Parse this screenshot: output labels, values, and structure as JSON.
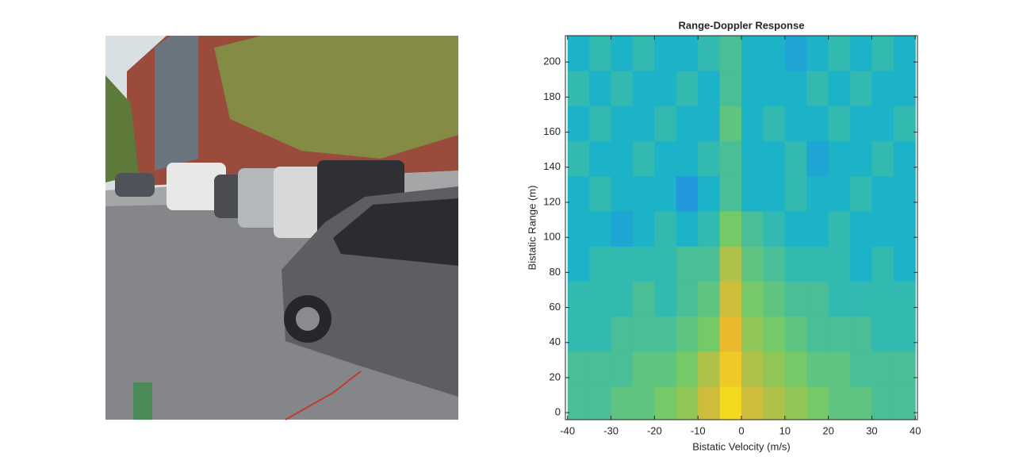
{
  "chart_data": {
    "type": "heatmap",
    "title": "Range-Doppler Response",
    "xlabel": "Bistatic Velocity (m/s)",
    "ylabel": "Bistatic Range (m)",
    "x": [
      -37.5,
      -32.5,
      -27.5,
      -22.5,
      -17.5,
      -12.5,
      -7.5,
      -2.5,
      2.5,
      7.5,
      12.5,
      17.5,
      22.5,
      27.5,
      32.5,
      37.5
    ],
    "y": [
      5,
      25,
      45,
      65,
      85,
      105,
      125,
      145,
      165,
      185,
      205
    ],
    "z": [
      [
        0.5,
        0.5,
        0.55,
        0.55,
        0.6,
        0.65,
        0.75,
        0.9,
        0.75,
        0.7,
        0.65,
        0.6,
        0.55,
        0.55,
        0.5,
        0.5
      ],
      [
        0.5,
        0.5,
        0.5,
        0.55,
        0.55,
        0.6,
        0.7,
        0.85,
        0.7,
        0.65,
        0.6,
        0.55,
        0.55,
        0.5,
        0.5,
        0.5
      ],
      [
        0.45,
        0.45,
        0.5,
        0.5,
        0.5,
        0.55,
        0.6,
        0.8,
        0.65,
        0.6,
        0.55,
        0.5,
        0.5,
        0.5,
        0.45,
        0.45
      ],
      [
        0.45,
        0.45,
        0.45,
        0.5,
        0.45,
        0.5,
        0.55,
        0.75,
        0.6,
        0.55,
        0.5,
        0.5,
        0.45,
        0.45,
        0.45,
        0.45
      ],
      [
        0.4,
        0.45,
        0.45,
        0.45,
        0.45,
        0.5,
        0.5,
        0.7,
        0.55,
        0.5,
        0.45,
        0.45,
        0.45,
        0.4,
        0.45,
        0.4
      ],
      [
        0.4,
        0.4,
        0.35,
        0.4,
        0.45,
        0.4,
        0.45,
        0.6,
        0.5,
        0.45,
        0.4,
        0.4,
        0.45,
        0.4,
        0.4,
        0.4
      ],
      [
        0.4,
        0.45,
        0.4,
        0.4,
        0.4,
        0.3,
        0.4,
        0.5,
        0.4,
        0.4,
        0.45,
        0.4,
        0.4,
        0.45,
        0.4,
        0.4
      ],
      [
        0.45,
        0.4,
        0.4,
        0.45,
        0.4,
        0.4,
        0.45,
        0.5,
        0.4,
        0.4,
        0.45,
        0.35,
        0.4,
        0.4,
        0.45,
        0.4
      ],
      [
        0.4,
        0.45,
        0.4,
        0.4,
        0.45,
        0.4,
        0.4,
        0.55,
        0.4,
        0.45,
        0.4,
        0.4,
        0.45,
        0.4,
        0.4,
        0.45
      ],
      [
        0.45,
        0.4,
        0.45,
        0.4,
        0.4,
        0.45,
        0.4,
        0.5,
        0.4,
        0.4,
        0.4,
        0.45,
        0.4,
        0.45,
        0.4,
        0.4
      ],
      [
        0.4,
        0.45,
        0.4,
        0.45,
        0.4,
        0.4,
        0.45,
        0.5,
        0.4,
        0.4,
        0.35,
        0.4,
        0.45,
        0.4,
        0.45,
        0.4
      ]
    ],
    "colormap": [
      "#3e26a8",
      "#2979f3",
      "#1cb3c8",
      "#75c966",
      "#eab92d",
      "#f9fb15"
    ],
    "clim": [
      0,
      1
    ],
    "xlim": [
      -40.5,
      40.5
    ],
    "ylim": [
      -4,
      215
    ],
    "xticks": [
      -40,
      -30,
      -20,
      -10,
      0,
      10,
      20,
      30,
      40
    ],
    "yticks": [
      0,
      20,
      40,
      60,
      80,
      100,
      120,
      140,
      160,
      180,
      200
    ]
  }
}
